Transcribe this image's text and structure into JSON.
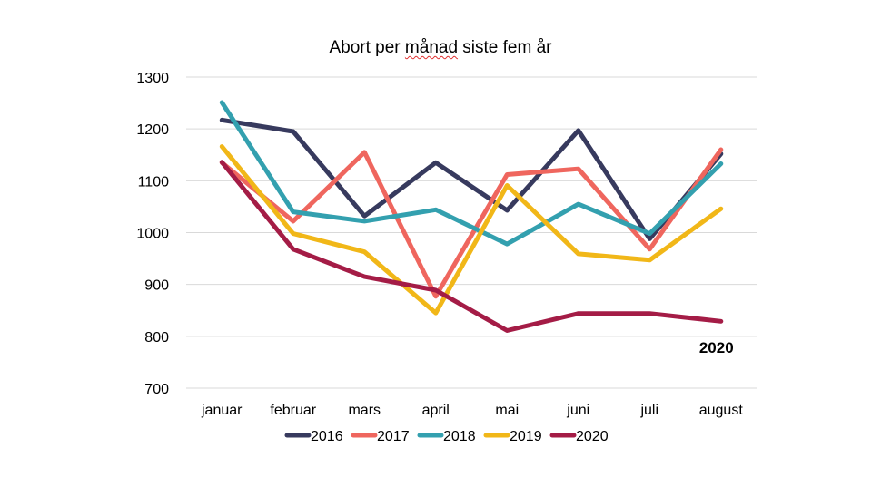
{
  "chart_data": {
    "type": "line",
    "title_prefix": "Abort per ",
    "title_word": "månad",
    "title_suffix": " siste fem år",
    "title": "Abort per månad siste fem år",
    "categories": [
      "januar",
      "februar",
      "mars",
      "april",
      "mai",
      "juni",
      "juli",
      "august"
    ],
    "ylim": [
      700,
      1300
    ],
    "yticks": [
      "1300",
      "1200",
      "1100",
      "1000",
      "900",
      "800",
      "700"
    ],
    "grid": true,
    "legend_position": "bottom",
    "annotation": "2020",
    "series": [
      {
        "name": "2016",
        "color": "#373a5e",
        "values": [
          1217,
          1195,
          1032,
          1135,
          1043,
          1197,
          988,
          1152
        ]
      },
      {
        "name": "2017",
        "color": "#ef665e",
        "values": [
          1135,
          1022,
          1155,
          877,
          1112,
          1123,
          968,
          1160
        ]
      },
      {
        "name": "2018",
        "color": "#33a0af",
        "values": [
          1251,
          1040,
          1022,
          1044,
          978,
          1055,
          998,
          1133
        ]
      },
      {
        "name": "2019",
        "color": "#f1b718",
        "values": [
          1166,
          998,
          963,
          845,
          1091,
          959,
          947,
          1046
        ]
      },
      {
        "name": "2020",
        "color": "#a41c46",
        "values": [
          1136,
          968,
          915,
          889,
          811,
          844,
          844,
          829
        ]
      }
    ]
  }
}
